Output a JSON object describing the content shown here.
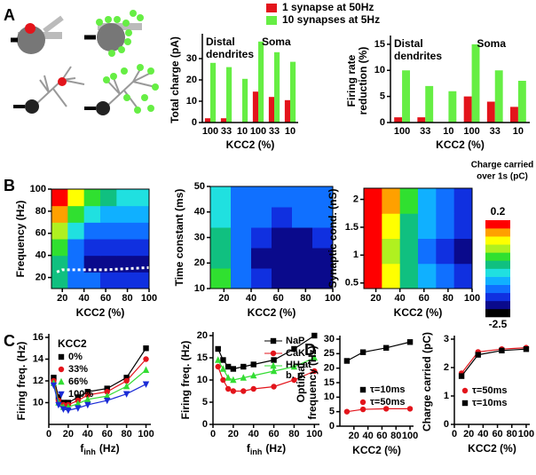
{
  "panel_labels": [
    "A",
    "B",
    "C",
    "D"
  ],
  "colorbar": {
    "title": [
      "Charge carried",
      "over 1s (pC)"
    ],
    "zlim": [
      -2.5,
      0.2
    ],
    "ticks": [
      0.2,
      -2.5
    ],
    "colors": [
      "#000000",
      "#0a0a8c",
      "#1030e0",
      "#1070ff",
      "#10b0ff",
      "#20e0e0",
      "#10c080",
      "#30e030",
      "#b0f020",
      "#ffff00",
      "#ffa000",
      "#ff0000"
    ]
  },
  "chart_data": [
    {
      "type": "bar",
      "y_label": [
        "Total charge (pA)"
      ],
      "x_label": "KCC2 (%)",
      "annotations": [
        "Distal dendrites",
        "Soma"
      ],
      "categories": [
        "100",
        "33",
        "10",
        "100",
        "33",
        "10"
      ],
      "ylim": [
        0,
        40
      ],
      "yticks": [
        0,
        10,
        20,
        30
      ],
      "series": [
        {
          "name": "1 synapse at 50Hz",
          "color": "#e3141b",
          "values": [
            2,
            2,
            0,
            14.5,
            12,
            10.5
          ]
        },
        {
          "name": "10 synapses at 5Hz",
          "color": "#66ee44",
          "values": [
            28,
            26,
            20.5,
            38,
            33,
            28.5
          ]
        }
      ]
    },
    {
      "type": "bar",
      "y_label": [
        "Firing rate",
        "reduction (%)"
      ],
      "x_label": "KCC2 (%)",
      "annotations": [
        "Distal dendrites",
        "Soma"
      ],
      "categories": [
        "100",
        "33",
        "10",
        "100",
        "33",
        "10"
      ],
      "ylim": [
        0,
        16
      ],
      "yticks": [
        0,
        5,
        10,
        15
      ],
      "series": [
        {
          "color": "#e3141b",
          "values": [
            1,
            1,
            0,
            5,
            4,
            3
          ]
        },
        {
          "color": "#66ee44",
          "values": [
            10,
            7,
            6,
            15,
            10,
            8
          ]
        }
      ]
    },
    {
      "type": "contour",
      "x_label": "KCC2 (%)",
      "y_label": [
        "Frequency (Hz)"
      ],
      "xlim": [
        10,
        100
      ],
      "xticks": [
        20,
        40,
        60,
        80,
        100
      ],
      "ylim": [
        10,
        100
      ],
      "yticks": [
        20,
        40,
        60,
        80,
        100
      ],
      "z": [
        [
          -1.0,
          -1.6,
          -1.8,
          -1.9,
          -1.9,
          -1.9
        ],
        [
          -1.1,
          -1.8,
          -2.1,
          -2.2,
          -2.2,
          -2.2
        ],
        [
          -0.8,
          -1.6,
          -1.9,
          -2.0,
          -2.0,
          -2.0
        ],
        [
          -0.5,
          -1.2,
          -1.6,
          -1.7,
          -1.8,
          -1.8
        ],
        [
          -0.2,
          -0.8,
          -1.2,
          -1.4,
          -1.5,
          -1.5
        ],
        [
          0.1,
          -0.4,
          -0.9,
          -1.1,
          -1.2,
          -1.2
        ]
      ],
      "overlay": {
        "color": "#ffffff",
        "x": [
          15,
          20,
          40,
          60,
          80,
          100
        ],
        "y": [
          25,
          27,
          27,
          27,
          28,
          29
        ]
      }
    },
    {
      "type": "contour",
      "x_label": "KCC2 (%)",
      "y_label": [
        "Time constant (ms)"
      ],
      "xlim": [
        10,
        100
      ],
      "xticks": [
        20,
        40,
        60,
        80,
        100
      ],
      "ylim": [
        10,
        50
      ],
      "yticks": [
        10,
        20,
        30,
        40,
        50
      ],
      "z": [
        [
          -0.8,
          -1.6,
          -2.0,
          -2.1,
          -2.1,
          -2.1
        ],
        [
          -1.0,
          -1.8,
          -2.1,
          -2.2,
          -2.2,
          -2.1
        ],
        [
          -1.1,
          -1.8,
          -2.0,
          -2.1,
          -2.1,
          -2.0
        ],
        [
          -1.2,
          -1.7,
          -1.8,
          -1.9,
          -1.8,
          -1.7
        ],
        [
          -1.3,
          -1.6,
          -1.7,
          -1.7,
          -1.6,
          -1.6
        ]
      ]
    },
    {
      "type": "contour",
      "x_label": "KCC2 (%)",
      "y_label": [
        "Synaptic cond. (nS)"
      ],
      "xlim": [
        10,
        100
      ],
      "xticks": [
        20,
        40,
        60,
        80,
        100
      ],
      "ylim": [
        0.4,
        2.2
      ],
      "yticks": [
        0.5,
        1,
        1.5,
        2
      ],
      "z": [
        [
          0.0,
          -0.4,
          -1.0,
          -1.5,
          -1.8,
          -2.0
        ],
        [
          0.1,
          -0.5,
          -1.1,
          -1.6,
          -1.9,
          -2.1
        ],
        [
          0.15,
          -0.3,
          -1.0,
          -1.5,
          -1.8,
          -2.0
        ],
        [
          0.15,
          -0.2,
          -0.9,
          -1.4,
          -1.7,
          -1.9
        ]
      ]
    },
    {
      "type": "line",
      "y_label": [
        "Firing freq. (Hz)"
      ],
      "x_label": [
        {
          "text": "f"
        },
        {
          "text": "inh",
          "sub": true
        },
        {
          "text": "(Hz)"
        }
      ],
      "xlim": [
        0,
        105
      ],
      "xticks": [
        0,
        20,
        40,
        60,
        80,
        100
      ],
      "ylim": [
        8,
        16
      ],
      "yticks": [
        10,
        12,
        14,
        16
      ],
      "legend": "upper left",
      "legend_title": "KCC2",
      "x": [
        5,
        10,
        15,
        20,
        30,
        40,
        60,
        80,
        100
      ],
      "series": [
        {
          "name": "0%",
          "color": "#000000",
          "marker": "square",
          "values": [
            12.3,
            10.5,
            10.0,
            10.0,
            10.5,
            11.0,
            11.3,
            12.3,
            15.0
          ]
        },
        {
          "name": "33%",
          "color": "#e3141b",
          "marker": "circle",
          "values": [
            12.0,
            10.2,
            9.8,
            9.8,
            10.2,
            10.7,
            11.0,
            12.0,
            14.0
          ]
        },
        {
          "name": "66%",
          "color": "#33dd33",
          "marker": "triangle",
          "values": [
            11.8,
            10.0,
            9.6,
            9.6,
            9.9,
            10.3,
            10.6,
            11.5,
            13.0
          ]
        },
        {
          "name": "100%",
          "color": "#1a2bd6",
          "marker": "triangle-down",
          "values": [
            11.6,
            9.8,
            9.4,
            9.3,
            9.5,
            9.8,
            10.2,
            10.8,
            11.7
          ]
        }
      ]
    },
    {
      "type": "line",
      "y_label": [
        "Firing freq. (Hz)"
      ],
      "x_label": [
        {
          "text": "f"
        },
        {
          "text": "inh",
          "sub": true
        },
        {
          "text": "(Hz)"
        }
      ],
      "xlim": [
        0,
        105
      ],
      "xticks": [
        0,
        20,
        40,
        60,
        80,
        100
      ],
      "ylim": [
        0,
        20
      ],
      "yticks": [
        0,
        5,
        10,
        15,
        20
      ],
      "legend": "upper right",
      "x": [
        5,
        10,
        15,
        20,
        30,
        40,
        60,
        80,
        100
      ],
      "series": [
        {
          "name": "NaP",
          "color": "#000000",
          "marker": "square",
          "values": [
            17,
            14.5,
            13,
            12.5,
            13,
            13.5,
            14.5,
            17,
            20
          ]
        },
        {
          "name": "CaK",
          "color": "#e3141b",
          "marker": "circle",
          "values": [
            13,
            10,
            8,
            7.5,
            7.5,
            8,
            8.5,
            10,
            12
          ]
        },
        {
          "name": "HH at b. p.",
          "color": "#33dd33",
          "marker": "triangle",
          "values": [
            14.5,
            12.5,
            10.5,
            10,
            10.5,
            11,
            12,
            13,
            15
          ]
        }
      ]
    },
    {
      "type": "line",
      "y_label": [
        "Optimal",
        "frequency (Hz)"
      ],
      "x_label": "KCC2 (%)",
      "xlim": [
        0,
        105
      ],
      "xticks": [
        20,
        40,
        60,
        80,
        100
      ],
      "ylim": [
        0,
        30
      ],
      "yticks": [
        0,
        5,
        10,
        15,
        20,
        25,
        30
      ],
      "legend": "center",
      "x": [
        10,
        33,
        66,
        100
      ],
      "series": [
        {
          "name": "τ=10ms",
          "color": "#000000",
          "marker": "square",
          "values": [
            22.5,
            25.5,
            27,
            29
          ]
        },
        {
          "name": "τ=50ms",
          "color": "#e3141b",
          "marker": "circle",
          "values": [
            5,
            5.8,
            6,
            6
          ]
        }
      ]
    },
    {
      "type": "line",
      "y_label": [
        "Charge carried (pC)"
      ],
      "x_label": "KCC2 (%)",
      "xlim": [
        0,
        105
      ],
      "xticks": [
        0,
        20,
        40,
        60,
        80,
        100
      ],
      "ylim": [
        0,
        3
      ],
      "yticks": [
        0,
        1,
        2,
        3
      ],
      "legend": "lower center",
      "x": [
        10,
        33,
        66,
        100
      ],
      "series": [
        {
          "name": "τ=50ms",
          "color": "#e3141b",
          "marker": "circle",
          "values": [
            1.8,
            2.55,
            2.65,
            2.7
          ]
        },
        {
          "name": "τ=10ms",
          "color": "#000000",
          "marker": "square",
          "values": [
            1.7,
            2.45,
            2.6,
            2.65
          ]
        }
      ]
    }
  ]
}
